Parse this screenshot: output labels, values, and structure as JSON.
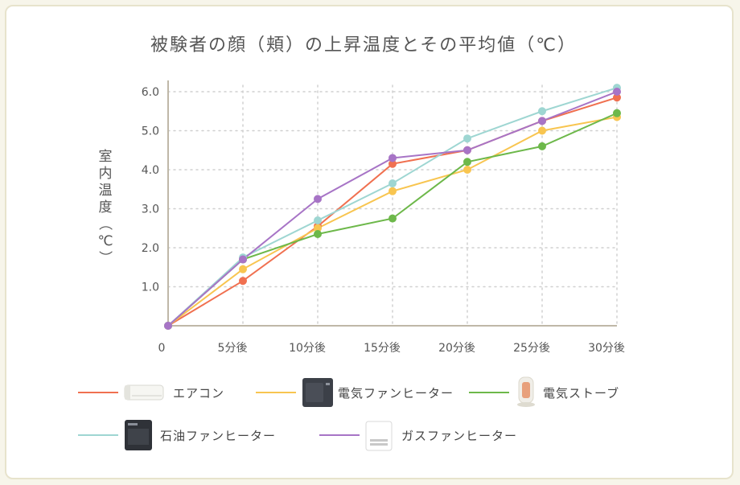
{
  "chart_data": {
    "type": "line",
    "title": "被験者の顔（頬）の上昇温度とその平均値（℃）",
    "ylabel": "室内温度（℃）",
    "xlabel": "",
    "categories": [
      "0",
      "5分後",
      "10分後",
      "15分後",
      "20分後",
      "25分後",
      "30分後"
    ],
    "y_ticks": [
      "1.0",
      "2.0",
      "3.0",
      "4.0",
      "5.0",
      "6.0"
    ],
    "ylim": [
      0,
      6.0
    ],
    "grid": true,
    "legend_position": "bottom",
    "series": [
      {
        "name": "エアコン",
        "color": "#f07050",
        "icon": "air-conditioner-icon",
        "values": [
          0,
          1.15,
          2.55,
          4.15,
          4.5,
          5.25,
          5.85
        ]
      },
      {
        "name": "電気ファンヒーター",
        "color": "#f8c550",
        "icon": "electric-fan-heater-icon",
        "values": [
          0,
          1.45,
          2.5,
          3.45,
          4.0,
          5.0,
          5.35
        ]
      },
      {
        "name": "電気ストーブ",
        "color": "#6db84a",
        "icon": "electric-stove-icon",
        "values": [
          0,
          1.7,
          2.35,
          2.75,
          4.2,
          4.6,
          5.45
        ]
      },
      {
        "name": "石油ファンヒーター",
        "color": "#9ed6d2",
        "icon": "oil-fan-heater-icon",
        "values": [
          0,
          1.75,
          2.7,
          3.65,
          4.8,
          5.5,
          6.1
        ]
      },
      {
        "name": "ガスファンヒーター",
        "color": "#a774c6",
        "icon": "gas-fan-heater-icon",
        "values": [
          0,
          1.7,
          3.25,
          4.3,
          4.5,
          5.25,
          6.0
        ]
      }
    ]
  }
}
